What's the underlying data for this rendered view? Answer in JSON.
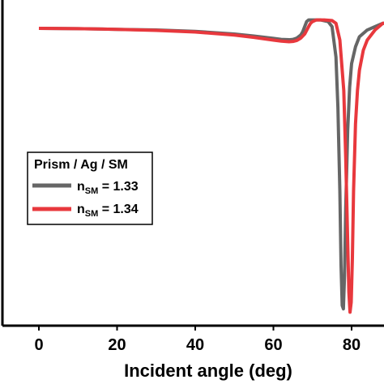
{
  "chart_data": {
    "type": "line",
    "xlabel": "Incident angle (deg)",
    "ylabel": "",
    "xlim": [
      -10,
      90
    ],
    "xticks": [
      0,
      20,
      40,
      60,
      80
    ],
    "x_tick_labels": [
      "0",
      "20",
      "40",
      "60",
      "80"
    ],
    "legend": {
      "title": "Prism / Ag / SM",
      "position": "left-middle",
      "entries": [
        {
          "label_main": "n",
          "label_sub": "SM",
          "label_rest": " = 1.33",
          "color": "#666666"
        },
        {
          "label_main": "n",
          "label_sub": "SM",
          "label_rest": " = 1.34",
          "color": "#e8383d"
        }
      ]
    },
    "series": [
      {
        "color": "#666666",
        "x": [
          0,
          10,
          20,
          30,
          40,
          50,
          55,
          60,
          62,
          64,
          65,
          66,
          67,
          67.5,
          68,
          68.5,
          69,
          70,
          72,
          74,
          75,
          76,
          76.5,
          77,
          77.3,
          77.6,
          77.9,
          78.2,
          78.5,
          79,
          79.5,
          80,
          81,
          82,
          84,
          86,
          88,
          90
        ],
        "y": [
          0.885,
          0.884,
          0.882,
          0.88,
          0.876,
          0.868,
          0.862,
          0.855,
          0.852,
          0.851,
          0.852,
          0.856,
          0.865,
          0.875,
          0.89,
          0.905,
          0.91,
          0.91,
          0.91,
          0.905,
          0.89,
          0.8,
          0.65,
          0.4,
          0.18,
          0.06,
          0.05,
          0.15,
          0.35,
          0.58,
          0.71,
          0.78,
          0.83,
          0.86,
          0.88,
          0.89,
          0.9,
          0.9
        ]
      },
      {
        "color": "#e8383d",
        "x": [
          0,
          10,
          20,
          30,
          40,
          50,
          55,
          60,
          62,
          64,
          65,
          66,
          67,
          68,
          69,
          69.5,
          70,
          71,
          73,
          75,
          76,
          77,
          78,
          78.5,
          79,
          79.3,
          79.6,
          79.9,
          80.2,
          80.5,
          81,
          81.5,
          82,
          83,
          84,
          86,
          88,
          90
        ],
        "y": [
          0.885,
          0.884,
          0.882,
          0.879,
          0.874,
          0.865,
          0.858,
          0.85,
          0.847,
          0.845,
          0.846,
          0.849,
          0.856,
          0.868,
          0.89,
          0.9,
          0.905,
          0.91,
          0.91,
          0.908,
          0.9,
          0.85,
          0.7,
          0.5,
          0.25,
          0.1,
          0.04,
          0.07,
          0.2,
          0.4,
          0.6,
          0.7,
          0.76,
          0.82,
          0.85,
          0.88,
          0.9,
          0.9
        ]
      }
    ],
    "ylim": [
      0,
      1
    ]
  }
}
